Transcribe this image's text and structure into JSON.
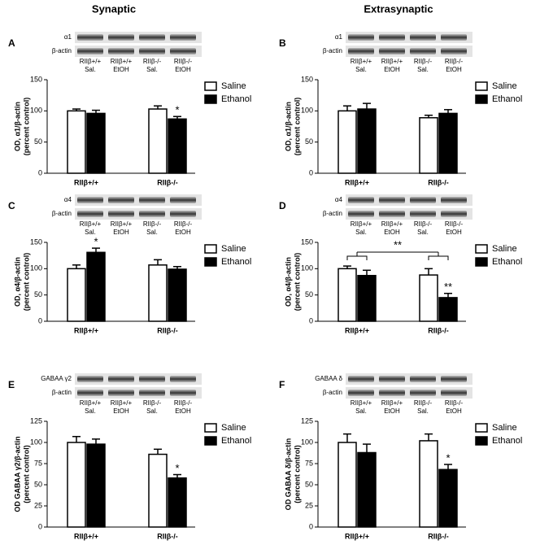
{
  "headings": [
    "Synaptic",
    "Extrasynaptic"
  ],
  "chart_data": [
    {
      "type": "bar",
      "panel": "A",
      "blot": {
        "rows": [
          "α1",
          "β-actin"
        ],
        "lanes": [
          [
            "RIIβ+/+",
            "Sal."
          ],
          [
            "RIIβ+/+",
            "EtOH"
          ],
          [
            "RIIβ-/-",
            "Sal."
          ],
          [
            "RIIβ-/-",
            "EtOH"
          ]
        ]
      },
      "ylabel": [
        "OD, α1/β-actin",
        "(percent control)"
      ],
      "categories": [
        "RIIβ+/+",
        "RIIβ-/-"
      ],
      "series": [
        {
          "name": "Saline",
          "color": "#ffffff",
          "values": [
            100,
            103
          ],
          "errors": [
            3,
            5
          ]
        },
        {
          "name": "Ethanol",
          "color": "#000000",
          "values": [
            96,
            87
          ],
          "errors": [
            5,
            4
          ],
          "markers": [
            null,
            "*"
          ]
        }
      ],
      "ylim": [
        0,
        150
      ],
      "yticks": [
        0,
        50,
        100,
        150
      ],
      "legend": "upper right"
    },
    {
      "type": "bar",
      "panel": "B",
      "blot": {
        "rows": [
          "α1",
          "β-actin"
        ],
        "lanes": [
          [
            "RIIβ+/+",
            "Sal."
          ],
          [
            "RIIβ+/+",
            "EtOH"
          ],
          [
            "RIIβ-/-",
            "Sal."
          ],
          [
            "RIIβ-/-",
            "EtOH"
          ]
        ]
      },
      "ylabel": [
        "OD, α1/β-actin",
        "(percent control)"
      ],
      "categories": [
        "RIIβ+/+",
        "RIIβ-/-"
      ],
      "series": [
        {
          "name": "Saline",
          "color": "#ffffff",
          "values": [
            100,
            89
          ],
          "errors": [
            8,
            4
          ]
        },
        {
          "name": "Ethanol",
          "color": "#000000",
          "values": [
            103,
            96
          ],
          "errors": [
            9,
            6
          ]
        }
      ],
      "ylim": [
        0,
        150
      ],
      "yticks": [
        0,
        50,
        100,
        150
      ],
      "legend": "upper right"
    },
    {
      "type": "bar",
      "panel": "C",
      "blot": {
        "rows": [
          "α4",
          "β-actin"
        ],
        "lanes": [
          [
            "RIIβ+/+",
            "Sal."
          ],
          [
            "RIIβ+/+",
            "EtOH"
          ],
          [
            "RIIβ-/-",
            "Sal."
          ],
          [
            "RIIβ-/-",
            "EtOH"
          ]
        ]
      },
      "ylabel": [
        "OD, α4/β-actin",
        "(percent control)"
      ],
      "categories": [
        "RIIβ+/+",
        "RIIβ-/-"
      ],
      "series": [
        {
          "name": "Saline",
          "color": "#ffffff",
          "values": [
            100,
            107
          ],
          "errors": [
            7,
            10
          ]
        },
        {
          "name": "Ethanol",
          "color": "#000000",
          "values": [
            131,
            99
          ],
          "errors": [
            8,
            5
          ],
          "markers": [
            "*",
            null
          ]
        }
      ],
      "ylim": [
        0,
        150
      ],
      "yticks": [
        0,
        50,
        100,
        150
      ],
      "legend": "upper right"
    },
    {
      "type": "bar",
      "panel": "D",
      "blot": {
        "rows": [
          "α4",
          "β-actin"
        ],
        "lanes": [
          [
            "RIIβ+/+",
            "Sal."
          ],
          [
            "RIIβ+/+",
            "EtOH"
          ],
          [
            "RIIβ-/-",
            "Sal."
          ],
          [
            "RIIβ-/-",
            "EtOH"
          ]
        ]
      },
      "ylabel": [
        "OD, α4/β-actin",
        "(percent control)"
      ],
      "categories": [
        "RIIβ+/+",
        "RIIβ-/-"
      ],
      "series": [
        {
          "name": "Saline",
          "color": "#ffffff",
          "values": [
            100,
            88
          ],
          "errors": [
            5,
            12
          ]
        },
        {
          "name": "Ethanol",
          "color": "#000000",
          "values": [
            87,
            45
          ],
          "errors": [
            10,
            8
          ],
          "markers": [
            null,
            "**"
          ]
        }
      ],
      "bracket_label": "**",
      "ylim": [
        0,
        150
      ],
      "yticks": [
        0,
        50,
        100,
        150
      ],
      "legend": "upper right"
    },
    {
      "type": "bar",
      "panel": "E",
      "blot": {
        "rows": [
          "GABAA γ2",
          "β-actin"
        ],
        "lanes": [
          [
            "RIIβ+/+",
            "Sal."
          ],
          [
            "RIIβ+/+",
            "EtOH"
          ],
          [
            "RIIβ-/-",
            "Sal."
          ],
          [
            "RIIβ-/-",
            "EtOH"
          ]
        ]
      },
      "ylabel": [
        "OD GABAA γ2/β-actin",
        "(percent control)"
      ],
      "categories": [
        "RIIβ+/+",
        "RIIβ-/-"
      ],
      "series": [
        {
          "name": "Saline",
          "color": "#ffffff",
          "values": [
            100,
            86
          ],
          "errors": [
            7,
            6
          ]
        },
        {
          "name": "Ethanol",
          "color": "#000000",
          "values": [
            98,
            58
          ],
          "errors": [
            6,
            4
          ],
          "markers": [
            null,
            "*"
          ]
        }
      ],
      "ylim": [
        0,
        125
      ],
      "yticks": [
        0,
        25,
        50,
        75,
        100,
        125
      ],
      "legend": "upper right"
    },
    {
      "type": "bar",
      "panel": "F",
      "blot": {
        "rows": [
          "GABAA δ",
          "β-actin"
        ],
        "lanes": [
          [
            "RIIβ+/+",
            "Sal."
          ],
          [
            "RIIβ+/+",
            "EtOH"
          ],
          [
            "RIIβ-/-",
            "Sal."
          ],
          [
            "RIIβ-/-",
            "EtOH"
          ]
        ]
      },
      "ylabel": [
        "OD GABAA δ/β-actin",
        "(percent control)"
      ],
      "categories": [
        "RIIβ+/+",
        "RIIβ-/-"
      ],
      "series": [
        {
          "name": "Saline",
          "color": "#ffffff",
          "values": [
            100,
            102
          ],
          "errors": [
            10,
            8
          ]
        },
        {
          "name": "Ethanol",
          "color": "#000000",
          "values": [
            88,
            68
          ],
          "errors": [
            10,
            6
          ],
          "markers": [
            null,
            "*"
          ]
        }
      ],
      "ylim": [
        0,
        125
      ],
      "yticks": [
        0,
        25,
        50,
        75,
        100,
        125
      ],
      "legend": "upper right"
    }
  ]
}
